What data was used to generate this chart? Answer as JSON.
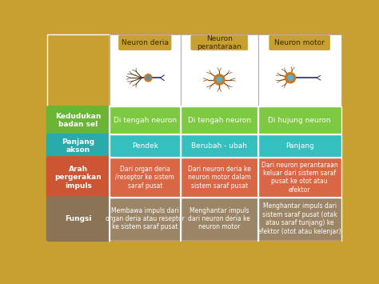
{
  "col_headers": [
    "Neuron deria",
    "Neuron\nperantaraan",
    "Neuron motor"
  ],
  "row_headers": [
    "Kedudukan\nbadan sel",
    "Panjang\nakson",
    "Arah\npergerakan\nimpuls",
    "Fungsi"
  ],
  "cells": [
    [
      "Di tengah neuron",
      "Di tengah neuron",
      "Di hujung neuron"
    ],
    [
      "Pendek",
      "Berubah - ubah",
      "Panjang"
    ],
    [
      "Dari organ deria\n/reseptor ke sistem\nsaraf pusat",
      "Dari neuron deria ke\nneuron motor dalam\nsistem saraf pusat",
      "Dari neuron perantaraan\nkeluar dari sistem saraf\npusat ke otot atau\nefektor"
    ],
    [
      "Membawa impuls dari\norgan deria atau reseptor\nke sistem saraf pusat",
      "Menghantar impuls\ndari neuron deria ke\nneuron motor",
      "Menghantar impuls dari\nsistem saraf pusat (otak\natau saraf tunjang) ke\nefektor (otot atau kelenjar)"
    ]
  ],
  "row_header_colors": [
    "#6ab536",
    "#2aabab",
    "#cc5533",
    "#8b7355"
  ],
  "row_cell_colors": [
    "#7dc942",
    "#35bfbf",
    "#d96644",
    "#9c8566"
  ],
  "col_header_color": "#c8a030",
  "background_color": "#c8a030",
  "header_text_color": "#3a2a00",
  "white_bg": "#ffffff",
  "cell_text_color": "#ffffff",
  "row_header_text_color": "#ffffff",
  "bottom_bar_color": "#c8a030",
  "border_color": "#b0b0b0"
}
